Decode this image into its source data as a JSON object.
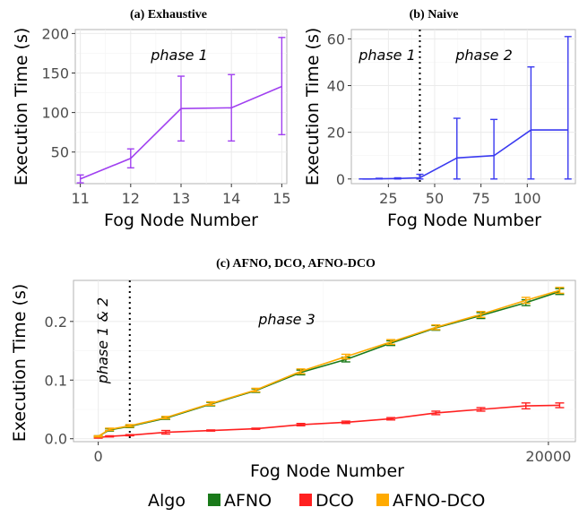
{
  "chart_data": [
    {
      "id": "a",
      "type": "line",
      "title": "(a) Exhaustive",
      "xlabel": "Fog Node Number",
      "ylabel": "Execution Time (s)",
      "xlim": [
        10.9,
        15.1
      ],
      "ylim": [
        10,
        205
      ],
      "xticks": [
        11,
        12,
        13,
        14,
        15
      ],
      "yticks": [
        50,
        100,
        150,
        200
      ],
      "grid": true,
      "annotations": [
        {
          "text": "phase 1"
        }
      ],
      "series": [
        {
          "color": "#a040f0",
          "x": [
            11,
            12,
            13,
            14,
            15
          ],
          "y": [
            16,
            42,
            105,
            106,
            133
          ],
          "ymin": [
            11,
            30,
            64,
            64,
            72
          ],
          "ymax": [
            21,
            54,
            146,
            148,
            195
          ]
        }
      ]
    },
    {
      "id": "b",
      "type": "line",
      "title": "(b) Naive",
      "xlabel": "Fog Node Number",
      "ylabel": "Execution Time (s)",
      "xlim": [
        5,
        126
      ],
      "ylim": [
        -2,
        64
      ],
      "xticks": [
        25,
        50,
        75,
        100
      ],
      "yticks": [
        0,
        20,
        40,
        60
      ],
      "grid": true,
      "vline": 42,
      "annotations": [
        {
          "text": "phase 1"
        },
        {
          "text": "phase 2"
        }
      ],
      "series": [
        {
          "color": "#3a3af0",
          "x": [
            11,
            15,
            20,
            30,
            42,
            62,
            82,
            102,
            122
          ],
          "y": [
            0,
            0,
            0.1,
            0.2,
            0.5,
            9,
            10,
            21,
            21
          ],
          "ymin": [
            0,
            0,
            0,
            0,
            0,
            0,
            0,
            0,
            0
          ],
          "ymax": [
            0,
            0,
            0.3,
            0.5,
            2,
            26,
            25.5,
            48,
            61
          ]
        }
      ]
    },
    {
      "id": "c",
      "type": "line",
      "title": "(c) AFNO, DCO, AFNO-DCO",
      "xlabel": "Fog Node Number",
      "ylabel": "Execution Time (s)",
      "xlim": [
        -1100,
        21200
      ],
      "ylim": [
        -0.005,
        0.27
      ],
      "xticks": [
        0,
        20000
      ],
      "yticks": [
        0.0,
        0.1,
        0.2
      ],
      "ytick_labels": [
        "0.0",
        "0.1",
        "0.2"
      ],
      "grid": true,
      "vline": 1400,
      "annotations": [
        {
          "text": "phase 1 & 2"
        },
        {
          "text": "phase 3"
        }
      ],
      "legend": {
        "title": "Algo",
        "position": "bottom"
      },
      "x": [
        0,
        500,
        1400,
        3000,
        5000,
        7000,
        9000,
        11000,
        13000,
        15000,
        17000,
        19000,
        20500
      ],
      "series": [
        {
          "name": "AFNO",
          "color": "#1a7a1a",
          "y": [
            0.004,
            0.015,
            0.021,
            0.035,
            0.059,
            0.082,
            0.113,
            0.135,
            0.163,
            0.189,
            0.21,
            0.232,
            0.251
          ],
          "err": [
            0.001,
            0.002,
            0.002,
            0.002,
            0.003,
            0.003,
            0.004,
            0.004,
            0.004,
            0.004,
            0.005,
            0.005,
            0.005
          ]
        },
        {
          "name": "DCO",
          "color": "#ff2020",
          "y": [
            0.002,
            0.004,
            0.006,
            0.011,
            0.014,
            0.017,
            0.024,
            0.028,
            0.034,
            0.044,
            0.05,
            0.056,
            0.057
          ],
          "err": [
            0.001,
            0.001,
            0.001,
            0.003,
            0.001,
            0.001,
            0.002,
            0.002,
            0.002,
            0.003,
            0.003,
            0.005,
            0.004
          ]
        },
        {
          "name": "AFNO-DCO",
          "color": "#ffaa00",
          "y": [
            0.004,
            0.016,
            0.022,
            0.036,
            0.06,
            0.083,
            0.115,
            0.14,
            0.165,
            0.19,
            0.212,
            0.236,
            0.253
          ],
          "err": [
            0.001,
            0.002,
            0.002,
            0.002,
            0.003,
            0.003,
            0.004,
            0.004,
            0.004,
            0.004,
            0.005,
            0.005,
            0.005
          ]
        }
      ]
    }
  ]
}
